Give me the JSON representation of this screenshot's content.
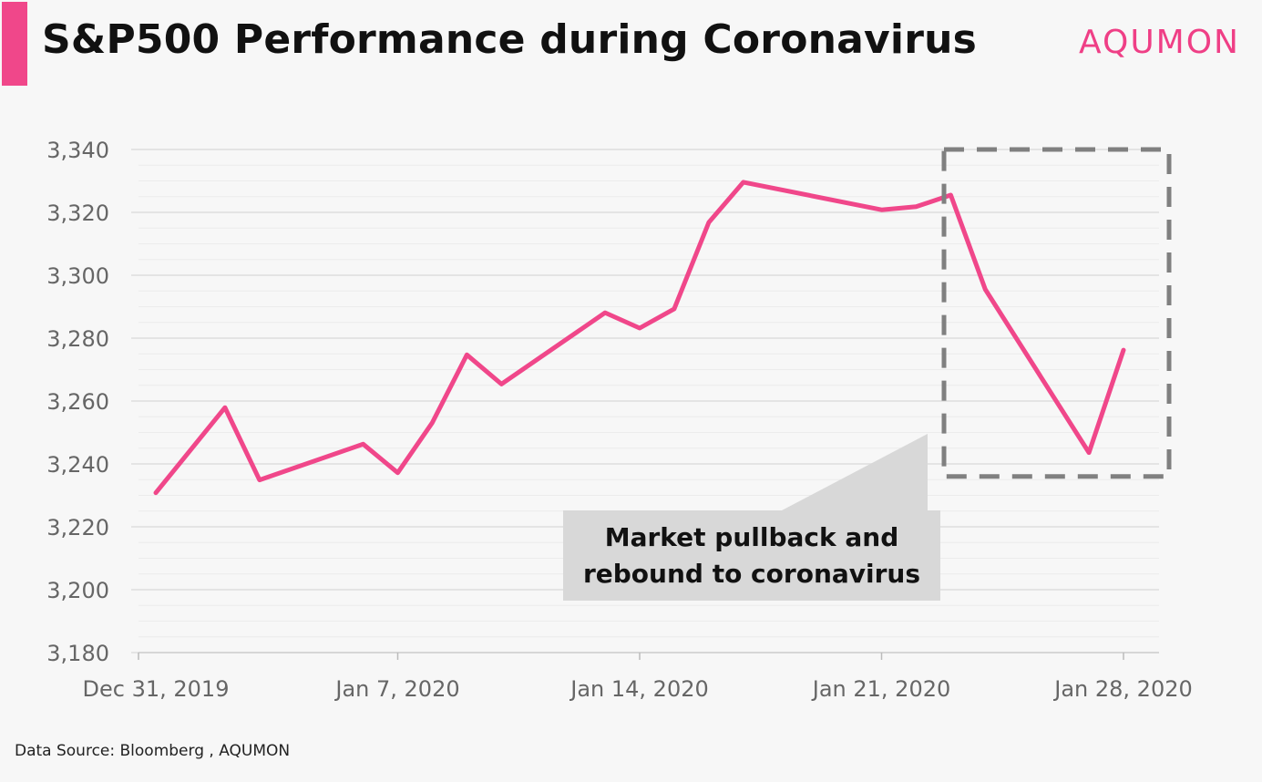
{
  "header": {
    "title": "S&P500 Performance during Coronavirus",
    "logo": "AQUMON"
  },
  "footer": {
    "source": "Data Source: Bloomberg , AQUMON"
  },
  "colors": {
    "accent": "#f0478a",
    "line": "#f0478a",
    "logo": "#ef3f86",
    "grid": "#dddddd",
    "axis_text": "#666666",
    "annotation_box": "#d8d8d8",
    "dashed_box": "#808080"
  },
  "chart_data": {
    "type": "line",
    "title": "S&P500 Performance during Coronavirus",
    "xlabel": "",
    "ylabel": "",
    "ylim": [
      3180,
      3340
    ],
    "yticks": [
      3180,
      3200,
      3220,
      3240,
      3260,
      3280,
      3300,
      3320,
      3340
    ],
    "ytick_labels": [
      "3,180",
      "3,200",
      "3,220",
      "3,240",
      "3,260",
      "3,280",
      "3,300",
      "3,320",
      "3,340"
    ],
    "xlim": [
      "2019-12-31",
      "2020-01-29"
    ],
    "xticks": [
      "2019-12-31",
      "2020-01-07",
      "2020-01-14",
      "2020-01-21",
      "2020-01-28"
    ],
    "xtick_labels": [
      "Dec 31, 2019",
      "Jan 7, 2020",
      "Jan 14, 2020",
      "Jan 21, 2020",
      "Jan 28, 2020"
    ],
    "grid": true,
    "series": [
      {
        "x": [
          "2019-12-31",
          "2020-01-02",
          "2020-01-03",
          "2020-01-06",
          "2020-01-07",
          "2020-01-08",
          "2020-01-09",
          "2020-01-10",
          "2020-01-13",
          "2020-01-14",
          "2020-01-15",
          "2020-01-16",
          "2020-01-17",
          "2020-01-21",
          "2020-01-22",
          "2020-01-23",
          "2020-01-24",
          "2020-01-27",
          "2020-01-28"
        ],
        "values": [
          3230.8,
          3257.9,
          3234.9,
          3246.3,
          3237.2,
          3253.1,
          3274.7,
          3265.4,
          3288.1,
          3283.2,
          3289.3,
          3316.8,
          3329.6,
          3320.8,
          3321.8,
          3325.5,
          3295.5,
          3243.6,
          3276.2
        ]
      }
    ],
    "annotations": [
      {
        "type": "text-callout",
        "lines": [
          "Market pullback and",
          "rebound to coronavirus"
        ]
      },
      {
        "type": "dashed-box",
        "x_range": [
          "2020-01-22",
          "2020-01-29"
        ],
        "y_range": [
          3236,
          3340
        ]
      }
    ]
  }
}
